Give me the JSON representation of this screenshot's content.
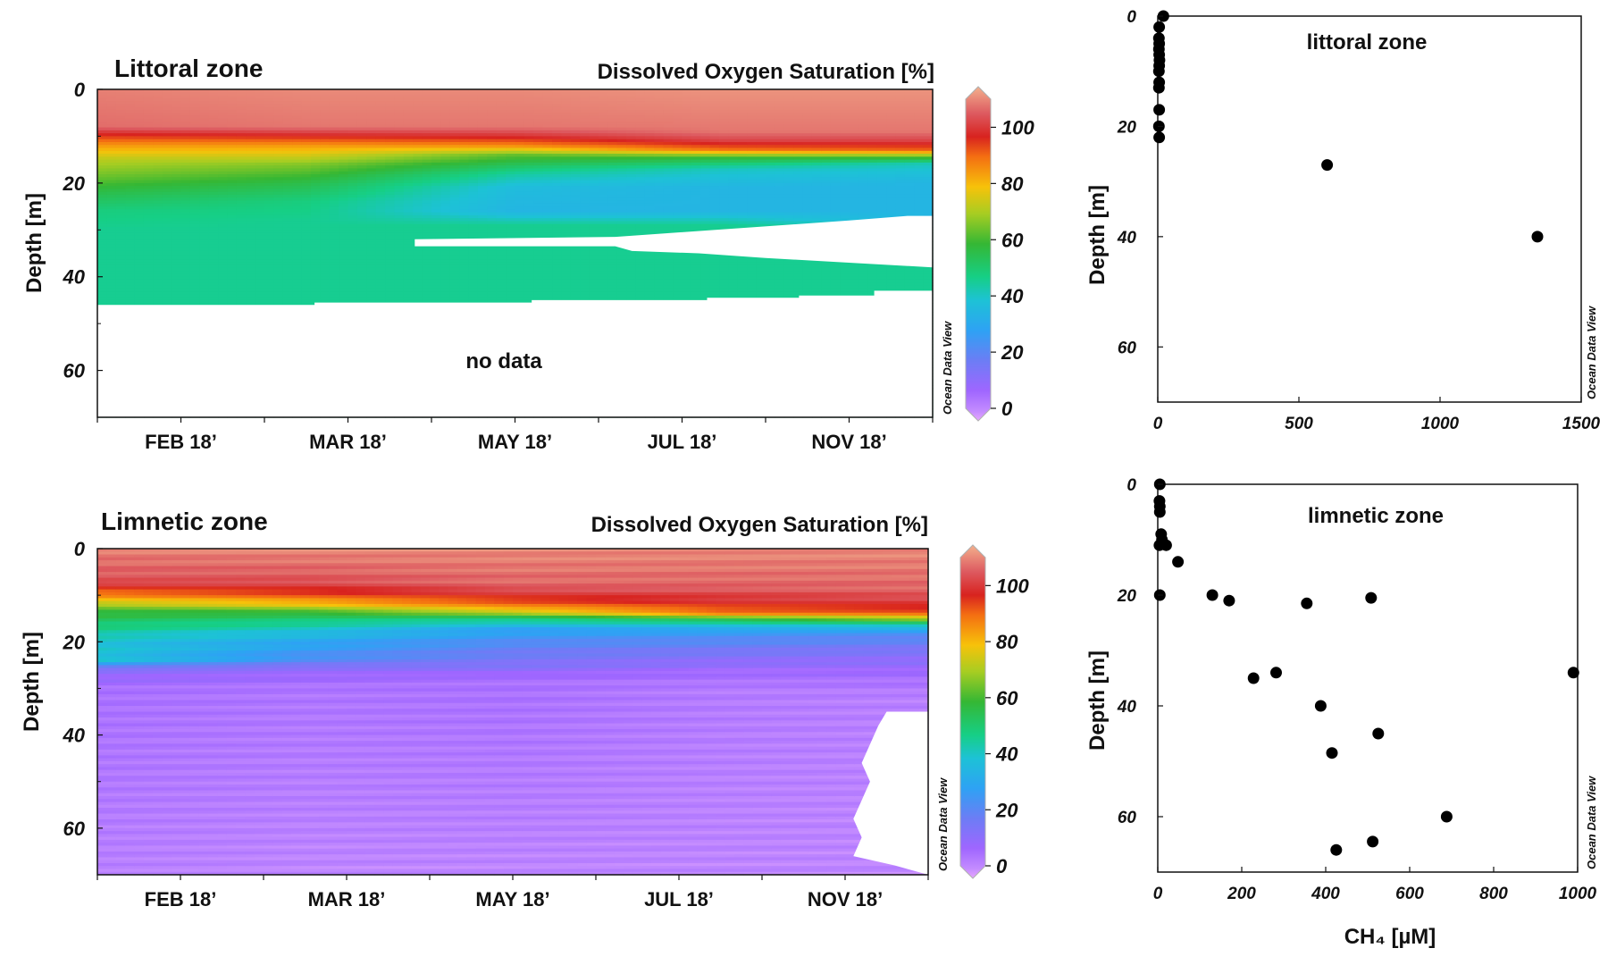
{
  "chart_data": [
    {
      "id": "littoral_section",
      "type": "heatmap",
      "title": "Littoral zone",
      "variable_label": "Dissolved Oxygen Saturation [%]",
      "ylabel": "Depth [m]",
      "ylim": [
        0,
        70
      ],
      "yticks": [
        "0",
        "20",
        "40",
        "60"
      ],
      "xticks": [
        "FEB 18’",
        "MAR 18’",
        "MAY 18’",
        "JUL 18’",
        "NOV 18’"
      ],
      "colorbar": {
        "range": [
          0,
          110
        ],
        "ticks": [
          "0",
          "20",
          "40",
          "60",
          "80",
          "100"
        ]
      },
      "annotation": "no data",
      "watermark": "Ocean Data View",
      "profile_time_fraction": [
        0,
        0.25,
        0.5,
        0.75,
        1
      ],
      "profiles": [
        [
          [
            0,
            105
          ],
          [
            8,
            103
          ],
          [
            10,
            92
          ],
          [
            12,
            82
          ],
          [
            15,
            70
          ],
          [
            19,
            62
          ],
          [
            22,
            55
          ],
          [
            26,
            48
          ],
          [
            30,
            46
          ],
          [
            46,
            46
          ]
        ],
        [
          [
            0,
            106
          ],
          [
            8,
            104
          ],
          [
            10,
            94
          ],
          [
            12,
            82
          ],
          [
            16,
            65
          ],
          [
            20,
            55
          ],
          [
            24,
            48
          ],
          [
            28,
            46
          ],
          [
            46,
            46
          ]
        ],
        [
          [
            0,
            106
          ],
          [
            8,
            104
          ],
          [
            10,
            96
          ],
          [
            12,
            84
          ],
          [
            14,
            62
          ],
          [
            18,
            45
          ],
          [
            21,
            38
          ],
          [
            26,
            36
          ],
          [
            29,
            46
          ],
          [
            46,
            46
          ]
        ],
        [
          [
            0,
            107
          ],
          [
            9,
            104
          ],
          [
            11,
            98
          ],
          [
            13,
            86
          ],
          [
            14.5,
            58
          ],
          [
            17,
            42
          ],
          [
            21,
            36
          ],
          [
            26,
            36
          ],
          [
            29,
            46
          ],
          [
            45,
            46
          ]
        ],
        [
          [
            0,
            107
          ],
          [
            9,
            104
          ],
          [
            11,
            98
          ],
          [
            13,
            88
          ],
          [
            14.5,
            60
          ],
          [
            16,
            42
          ],
          [
            20,
            36
          ],
          [
            28,
            36
          ],
          [
            30,
            46
          ],
          [
            43,
            46
          ]
        ]
      ],
      "bottom_depth": [
        [
          0,
          46
        ],
        [
          0.26,
          46
        ],
        [
          0.26,
          45.5
        ],
        [
          0.52,
          45.5
        ],
        [
          0.52,
          45
        ],
        [
          0.73,
          45
        ],
        [
          0.73,
          44.5
        ],
        [
          0.84,
          44.5
        ],
        [
          0.84,
          44
        ],
        [
          0.93,
          44
        ],
        [
          0.93,
          43
        ],
        [
          1,
          43
        ]
      ],
      "surface_gap": [
        [
          0.38,
          32
        ],
        [
          0.62,
          31.5
        ],
        [
          0.66,
          31
        ],
        [
          0.74,
          30
        ],
        [
          0.82,
          29
        ],
        [
          0.9,
          28
        ],
        [
          0.97,
          27
        ],
        [
          1,
          27
        ],
        [
          1,
          38
        ]
      ],
      "gap_bottom": [
        [
          0.38,
          33.5
        ],
        [
          0.62,
          33.5
        ],
        [
          0.64,
          34.5
        ],
        [
          0.72,
          35
        ],
        [
          0.8,
          36
        ],
        [
          0.9,
          37
        ],
        [
          1,
          38
        ]
      ]
    },
    {
      "id": "limnetic_section",
      "type": "heatmap",
      "title": "Limnetic zone",
      "variable_label": "Dissolved Oxygen Saturation [%]",
      "ylabel": "Depth [m]",
      "ylim": [
        0,
        70
      ],
      "yticks": [
        "0",
        "20",
        "40",
        "60"
      ],
      "xticks": [
        "FEB 18’",
        "MAR 18’",
        "MAY 18’",
        "JUL 18’",
        "NOV 18’"
      ],
      "colorbar": {
        "range": [
          0,
          110
        ],
        "ticks": [
          "0",
          "20",
          "40",
          "60",
          "80",
          "100"
        ]
      },
      "watermark": "Ocean Data View",
      "profile_time_fraction": [
        0,
        0.25,
        0.5,
        0.75,
        1
      ],
      "profiles": [
        [
          [
            0,
            105
          ],
          [
            7,
            100
          ],
          [
            9,
            90
          ],
          [
            11,
            78
          ],
          [
            13,
            60
          ],
          [
            16,
            50
          ],
          [
            20,
            40
          ],
          [
            24,
            40
          ],
          [
            26,
            14
          ],
          [
            30,
            8
          ],
          [
            70,
            5
          ]
        ],
        [
          [
            0,
            106
          ],
          [
            7,
            100
          ],
          [
            10,
            90
          ],
          [
            12,
            76
          ],
          [
            14,
            55
          ],
          [
            17,
            42
          ],
          [
            20,
            32
          ],
          [
            24,
            24
          ],
          [
            26,
            12
          ],
          [
            30,
            7
          ],
          [
            70,
            4
          ]
        ],
        [
          [
            0,
            106
          ],
          [
            8,
            102
          ],
          [
            11,
            92
          ],
          [
            13,
            80
          ],
          [
            15,
            50
          ],
          [
            17,
            32
          ],
          [
            21,
            22
          ],
          [
            25,
            16
          ],
          [
            28,
            8
          ],
          [
            70,
            4
          ]
        ],
        [
          [
            0,
            106
          ],
          [
            8,
            102
          ],
          [
            12,
            94
          ],
          [
            14,
            84
          ],
          [
            15.5,
            48
          ],
          [
            18,
            28
          ],
          [
            22,
            18
          ],
          [
            26,
            10
          ],
          [
            30,
            6
          ],
          [
            70,
            4
          ]
        ],
        [
          [
            0,
            106
          ],
          [
            9,
            102
          ],
          [
            12,
            96
          ],
          [
            14,
            88
          ],
          [
            16,
            50
          ],
          [
            18,
            26
          ],
          [
            22,
            16
          ],
          [
            28,
            8
          ],
          [
            32,
            5
          ],
          [
            70,
            4
          ]
        ]
      ],
      "right_gap": [
        [
          1,
          35
        ],
        [
          0.95,
          35
        ],
        [
          0.94,
          38
        ],
        [
          0.93,
          42
        ],
        [
          0.92,
          46
        ],
        [
          0.93,
          50
        ],
        [
          0.92,
          54
        ],
        [
          0.91,
          58
        ],
        [
          0.92,
          62
        ],
        [
          0.91,
          66
        ],
        [
          0.96,
          68
        ],
        [
          1,
          70
        ]
      ]
    },
    {
      "id": "littoral_ch4",
      "type": "scatter",
      "title": "littoral zone",
      "xlabel": "",
      "ylabel": "Depth [m]",
      "xlim": [
        0,
        1500
      ],
      "ylim": [
        0,
        70
      ],
      "xticks": [
        "0",
        "500",
        "1000",
        "1500"
      ],
      "yticks": [
        "0",
        "20",
        "40",
        "60"
      ],
      "watermark": "Ocean Data View",
      "points": [
        [
          20,
          0
        ],
        [
          5,
          2
        ],
        [
          4,
          4
        ],
        [
          5,
          5
        ],
        [
          4,
          6
        ],
        [
          5,
          7
        ],
        [
          6,
          8
        ],
        [
          5,
          9
        ],
        [
          4,
          10
        ],
        [
          5,
          12
        ],
        [
          4,
          13
        ],
        [
          5,
          17
        ],
        [
          4,
          20
        ],
        [
          5,
          22
        ],
        [
          600,
          27
        ],
        [
          1345,
          40
        ]
      ]
    },
    {
      "id": "limnetic_ch4",
      "type": "scatter",
      "title": "limnetic zone",
      "xlabel": "CH₄ [µM]",
      "ylabel": "Depth [m]",
      "xlim": [
        0,
        1000
      ],
      "ylim": [
        0,
        70
      ],
      "xticks": [
        "0",
        "200",
        "400",
        "600",
        "800",
        "1000"
      ],
      "yticks": [
        "0",
        "20",
        "40",
        "60"
      ],
      "watermark": "Ocean Data View",
      "points": [
        [
          5,
          0
        ],
        [
          4,
          3
        ],
        [
          5,
          4
        ],
        [
          5,
          5
        ],
        [
          8,
          9
        ],
        [
          10,
          10
        ],
        [
          4,
          11
        ],
        [
          20,
          11
        ],
        [
          48,
          14
        ],
        [
          5,
          20
        ],
        [
          130,
          20
        ],
        [
          170,
          21
        ],
        [
          355,
          21.5
        ],
        [
          508,
          20.5
        ],
        [
          228,
          35
        ],
        [
          282,
          34
        ],
        [
          388,
          40
        ],
        [
          525,
          45
        ],
        [
          415,
          48.5
        ],
        [
          688,
          60
        ],
        [
          512,
          64.5
        ],
        [
          425,
          66
        ],
        [
          990,
          34
        ]
      ]
    }
  ]
}
